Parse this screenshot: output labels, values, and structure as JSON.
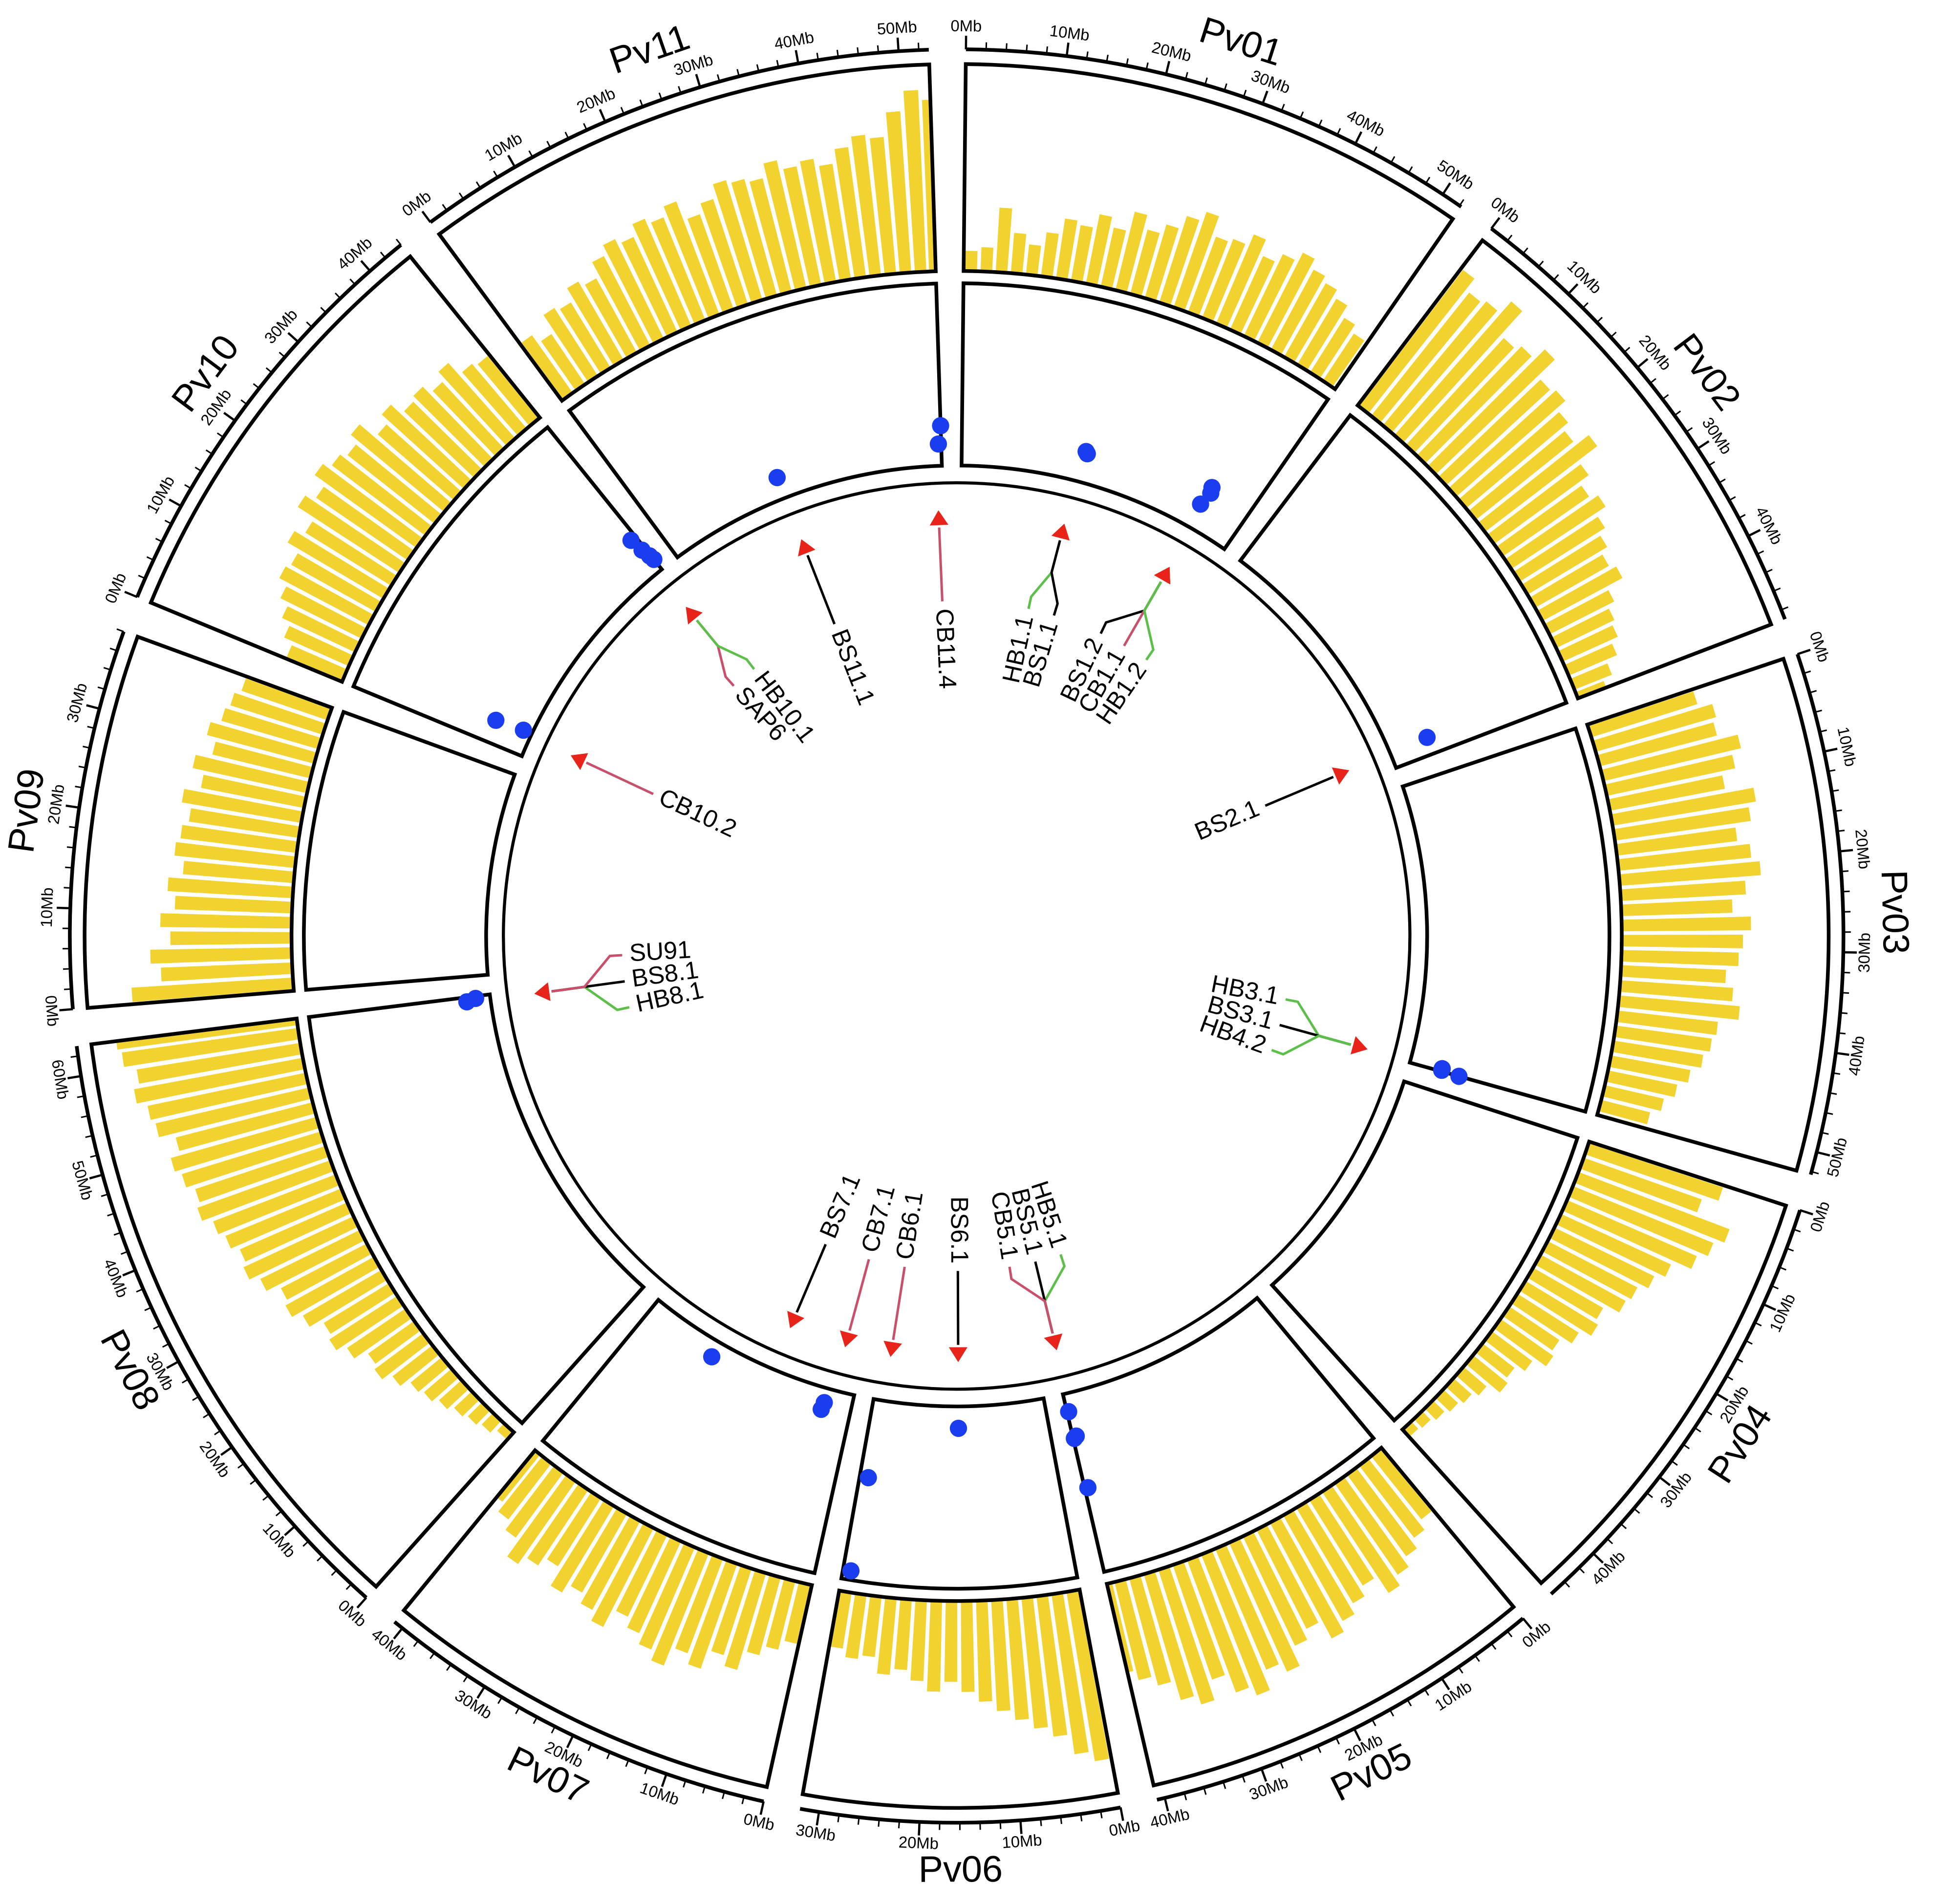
{
  "chart_data": {
    "type": "circos",
    "bin_size": 2,
    "minor_tick_step": 2,
    "density_lim": [
      0,
      1
    ],
    "density_color": "#f2d22e",
    "dot_color": "#1a3df0",
    "dot_lim": [
      0,
      1
    ],
    "triangle_color": "#e8231a",
    "chromosomes": [
      {
        "name": "Pv01",
        "length": 52.2,
        "ticks": [
          {
            "value": 0,
            "label": "0Mb"
          },
          {
            "value": 10,
            "label": "10Mb"
          },
          {
            "value": 20,
            "label": "20Mb"
          },
          {
            "value": 30,
            "label": "30Mb"
          },
          {
            "value": 40,
            "label": "40Mb"
          },
          {
            "value": 50,
            "label": "50Mb"
          }
        ],
        "density": [
          0.1,
          0.12,
          0.32,
          0.2,
          0.15,
          0.22,
          0.3,
          0.28,
          0.35,
          0.3,
          0.4,
          0.33,
          0.38,
          0.45,
          0.5,
          0.4,
          0.42,
          0.48,
          0.4,
          0.45,
          0.5,
          0.45,
          0.42,
          0.38,
          0.32,
          0.28,
          0.2
        ]
      },
      {
        "name": "Pv02",
        "length": 49.0,
        "ticks": [
          {
            "value": 0,
            "label": "0Mb"
          },
          {
            "value": 10,
            "label": "10Mb"
          },
          {
            "value": 20,
            "label": "20Mb"
          },
          {
            "value": 30,
            "label": "30Mb"
          },
          {
            "value": 40,
            "label": "40Mb"
          }
        ],
        "density": [
          0.85,
          0.78,
          0.8,
          0.88,
          0.72,
          0.75,
          0.82,
          0.7,
          0.72,
          0.66,
          0.62,
          0.7,
          0.58,
          0.52,
          0.56,
          0.5,
          0.46,
          0.42,
          0.45,
          0.36,
          0.32,
          0.3,
          0.26,
          0.2,
          0.15
        ]
      },
      {
        "name": "Pv03",
        "length": 52.3,
        "ticks": [
          {
            "value": 0,
            "label": "0Mb"
          },
          {
            "value": 10,
            "label": "10Mb"
          },
          {
            "value": 20,
            "label": "20Mb"
          },
          {
            "value": 30,
            "label": "30Mb"
          },
          {
            "value": 40,
            "label": "40Mb"
          },
          {
            "value": 50,
            "label": "50Mb"
          }
        ],
        "density": [
          0.55,
          0.62,
          0.6,
          0.7,
          0.65,
          0.58,
          0.72,
          0.68,
          0.6,
          0.66,
          0.7,
          0.62,
          0.55,
          0.64,
          0.6,
          0.58,
          0.52,
          0.56,
          0.6,
          0.5,
          0.48,
          0.45,
          0.4,
          0.35,
          0.3,
          0.25,
          0.22
        ]
      },
      {
        "name": "Pv04",
        "length": 45.8,
        "ticks": [
          {
            "value": 0,
            "label": "0Mb"
          },
          {
            "value": 10,
            "label": "10Mb"
          },
          {
            "value": 20,
            "label": "20Mb"
          },
          {
            "value": 30,
            "label": "30Mb"
          },
          {
            "value": 40,
            "label": "40Mb"
          }
        ],
        "density": [
          0.7,
          0.62,
          0.8,
          0.75,
          0.7,
          0.6,
          0.55,
          0.5,
          0.48,
          0.4,
          0.42,
          0.36,
          0.3,
          0.32,
          0.25,
          0.2,
          0.22,
          0.15,
          0.12,
          0.1,
          0.08,
          0.06,
          0.05
        ]
      },
      {
        "name": "Pv05",
        "length": 40.8,
        "ticks": [
          {
            "value": 0,
            "label": "0Mb"
          },
          {
            "value": 10,
            "label": "10Mb"
          },
          {
            "value": 20,
            "label": "20Mb"
          },
          {
            "value": 30,
            "label": "30Mb"
          },
          {
            "value": 40,
            "label": "40Mb"
          }
        ],
        "density": [
          0.4,
          0.45,
          0.5,
          0.55,
          0.6,
          0.5,
          0.55,
          0.6,
          0.65,
          0.55,
          0.6,
          0.7,
          0.65,
          0.75,
          0.7,
          0.6,
          0.7,
          0.65,
          0.55,
          0.5,
          0.45
        ]
      },
      {
        "name": "Pv06",
        "length": 31.9,
        "ticks": [
          {
            "value": 0,
            "label": "0Mb"
          },
          {
            "value": 10,
            "label": "10Mb"
          },
          {
            "value": 20,
            "label": "20Mb"
          },
          {
            "value": 30,
            "label": "30Mb"
          }
        ],
        "density": [
          0.85,
          0.8,
          0.7,
          0.65,
          0.6,
          0.55,
          0.5,
          0.45,
          0.4,
          0.45,
          0.4,
          0.35,
          0.38,
          0.3,
          0.32,
          0.28
        ]
      },
      {
        "name": "Pv07",
        "length": 41.0,
        "ticks": [
          {
            "value": 0,
            "label": "0Mb"
          },
          {
            "value": 10,
            "label": "10Mb"
          },
          {
            "value": 20,
            "label": "20Mb"
          },
          {
            "value": 30,
            "label": "30Mb"
          },
          {
            "value": 40,
            "label": "40Mb"
          }
        ],
        "density": [
          0.3,
          0.35,
          0.4,
          0.5,
          0.45,
          0.55,
          0.5,
          0.6,
          0.55,
          0.5,
          0.45,
          0.55,
          0.5,
          0.45,
          0.5,
          0.4,
          0.45,
          0.5,
          0.4,
          0.35,
          0.3
        ]
      },
      {
        "name": "Pv08",
        "length": 63.0,
        "ticks": [
          {
            "value": 0,
            "label": "0Mb"
          },
          {
            "value": 10,
            "label": "10Mb"
          },
          {
            "value": 20,
            "label": "20Mb"
          },
          {
            "value": 30,
            "label": "30Mb"
          },
          {
            "value": 40,
            "label": "40Mb"
          },
          {
            "value": 50,
            "label": "50Mb"
          },
          {
            "value": 60,
            "label": "60Mb"
          }
        ],
        "density": [
          0.05,
          0.08,
          0.1,
          0.12,
          0.15,
          0.18,
          0.2,
          0.25,
          0.3,
          0.28,
          0.35,
          0.4,
          0.38,
          0.45,
          0.5,
          0.48,
          0.55,
          0.6,
          0.58,
          0.62,
          0.65,
          0.7,
          0.68,
          0.72,
          0.75,
          0.7,
          0.78,
          0.8,
          0.85,
          0.82,
          0.88,
          0.9
        ]
      },
      {
        "name": "Pv09",
        "length": 38.0,
        "ticks": [
          {
            "value": 0,
            "label": "0Mb"
          },
          {
            "value": 10,
            "label": "10Mb"
          },
          {
            "value": 20,
            "label": "20Mb"
          },
          {
            "value": 30,
            "label": "30Mb"
          }
        ],
        "density": [
          0.8,
          0.65,
          0.7,
          0.6,
          0.65,
          0.58,
          0.62,
          0.55,
          0.6,
          0.58,
          0.55,
          0.6,
          0.52,
          0.58,
          0.5,
          0.55,
          0.5,
          0.48,
          0.45
        ]
      },
      {
        "name": "Pv10",
        "length": 44.0,
        "ticks": [
          {
            "value": 0,
            "label": "0Mb"
          },
          {
            "value": 10,
            "label": "10Mb"
          },
          {
            "value": 20,
            "label": "20Mb"
          },
          {
            "value": 30,
            "label": "30Mb"
          },
          {
            "value": 40,
            "label": "40Mb"
          }
        ],
        "density": [
          0.3,
          0.35,
          0.4,
          0.45,
          0.5,
          0.48,
          0.55,
          0.5,
          0.6,
          0.55,
          0.62,
          0.58,
          0.55,
          0.6,
          0.5,
          0.55,
          0.48,
          0.5,
          0.45,
          0.5,
          0.42,
          0.4
        ]
      },
      {
        "name": "Pv11",
        "length": 53.0,
        "ticks": [
          {
            "value": 0,
            "label": "0Mb"
          },
          {
            "value": 10,
            "label": "10Mb"
          },
          {
            "value": 20,
            "label": "20Mb"
          },
          {
            "value": 30,
            "label": "30Mb"
          },
          {
            "value": 40,
            "label": "40Mb"
          },
          {
            "value": 50,
            "label": "50Mb"
          }
        ],
        "density": [
          0.35,
          0.3,
          0.4,
          0.38,
          0.45,
          0.42,
          0.5,
          0.55,
          0.52,
          0.58,
          0.55,
          0.6,
          0.5,
          0.55,
          0.62,
          0.6,
          0.58,
          0.65,
          0.6,
          0.62,
          0.58,
          0.65,
          0.7,
          0.68,
          0.8,
          0.9,
          0.85
        ]
      }
    ],
    "dots": [
      {
        "chrom": 10,
        "pos": 53,
        "value": 0.22
      },
      {
        "chrom": 10,
        "pos": 52.5,
        "value": 0.12
      },
      {
        "chrom": 10,
        "pos": 23,
        "value": 0.12
      },
      {
        "chrom": 9,
        "pos": 43,
        "value": 0.23
      },
      {
        "chrom": 9,
        "pos": 43.4,
        "value": 0.15
      },
      {
        "chrom": 9,
        "pos": 43.8,
        "value": 0.1
      },
      {
        "chrom": 9,
        "pos": 44,
        "value": 0.07
      },
      {
        "chrom": 9,
        "pos": 4,
        "value": 0.21
      },
      {
        "chrom": 9,
        "pos": 4.5,
        "value": 0.05
      },
      {
        "chrom": 7,
        "pos": 62.2,
        "value": 0.13
      },
      {
        "chrom": 7,
        "pos": 62.6,
        "value": 0.08
      },
      {
        "chrom": 0,
        "pos": 22,
        "value": 0.17
      },
      {
        "chrom": 0,
        "pos": 22.3,
        "value": 0.16
      },
      {
        "chrom": 0,
        "pos": 44.5,
        "value": 0.25
      },
      {
        "chrom": 0,
        "pos": 44.8,
        "value": 0.22
      },
      {
        "chrom": 0,
        "pos": 44.2,
        "value": 0.14
      },
      {
        "chrom": 1,
        "pos": 46,
        "value": 0.22
      },
      {
        "chrom": 2,
        "pos": 51.8,
        "value": 0.18
      },
      {
        "chrom": 2,
        "pos": 52.1,
        "value": 0.18
      },
      {
        "chrom": 2,
        "pos": 52.3,
        "value": 0.28
      },
      {
        "chrom": 6,
        "pos": 5,
        "value": 0.08
      },
      {
        "chrom": 6,
        "pos": 5.2,
        "value": 0.12
      },
      {
        "chrom": 6,
        "pos": 27,
        "value": 0.09
      },
      {
        "chrom": 5,
        "pos": 16,
        "value": 0.12
      },
      {
        "chrom": 5,
        "pos": 30.5,
        "value": 0.43
      },
      {
        "chrom": 5,
        "pos": 30.8,
        "value": 0.95
      },
      {
        "chrom": 4,
        "pos": 40.5,
        "value": 0.1
      },
      {
        "chrom": 4,
        "pos": 40.2,
        "value": 0.24
      },
      {
        "chrom": 4,
        "pos": 40.6,
        "value": 0.25
      },
      {
        "chrom": 4,
        "pos": 40.3,
        "value": 0.53
      }
    ],
    "qtls": [
      {
        "name": "CB11.4",
        "chrom": 10,
        "pos": 52,
        "color": "#c8506a"
      },
      {
        "name": "BS11.1",
        "chrom": 10,
        "pos": 23,
        "color": "#000000"
      },
      {
        "name": "HB1.1",
        "chrom": 0,
        "pos": 21.5,
        "color": "#5cbf4a"
      },
      {
        "name": "BS1.1",
        "chrom": 0,
        "pos": 21.5,
        "color": "#000000"
      },
      {
        "name": "BS1.2",
        "chrom": 0,
        "pos": 45,
        "color": "#000000"
      },
      {
        "name": "CB1.1",
        "chrom": 0,
        "pos": 45,
        "color": "#c8506a"
      },
      {
        "name": "HB1.2",
        "chrom": 0,
        "pos": 45,
        "color": "#5cbf4a"
      },
      {
        "name": "BS2.1",
        "chrom": 1,
        "pos": 46,
        "color": "#000000"
      },
      {
        "name": "HB3.1",
        "chrom": 2,
        "pos": 52,
        "color": "#5cbf4a"
      },
      {
        "name": "BS3.1",
        "chrom": 2,
        "pos": 52,
        "color": "#000000"
      },
      {
        "name": "HB4.2",
        "chrom": 2,
        "pos": 52,
        "color": "#5cbf4a"
      },
      {
        "name": "HB5.1",
        "chrom": 4,
        "pos": 40,
        "color": "#5cbf4a"
      },
      {
        "name": "BS5.1",
        "chrom": 4,
        "pos": 40,
        "color": "#000000"
      },
      {
        "name": "CB5.1",
        "chrom": 4,
        "pos": 40,
        "color": "#c8506a"
      },
      {
        "name": "BS6.1",
        "chrom": 5,
        "pos": 16,
        "color": "#000000"
      },
      {
        "name": "CB6.1",
        "chrom": 5,
        "pos": 30,
        "color": "#c8506a"
      },
      {
        "name": "CB7.1",
        "chrom": 6,
        "pos": 4,
        "color": "#c8506a"
      },
      {
        "name": "BS7.1",
        "chrom": 6,
        "pos": 16,
        "color": "#000000"
      },
      {
        "name": "HB8.1",
        "chrom": 7,
        "pos": 62,
        "color": "#5cbf4a"
      },
      {
        "name": "BS8.1",
        "chrom": 7,
        "pos": 62,
        "color": "#000000"
      },
      {
        "name": "SU91",
        "chrom": 7,
        "pos": 62,
        "color": "#c8506a"
      },
      {
        "name": "CB10.2",
        "chrom": 9,
        "pos": 4,
        "color": "#c8506a"
      },
      {
        "name": "SAP6",
        "chrom": 9,
        "pos": 43,
        "color": "#c8506a"
      },
      {
        "name": "HB10.1",
        "chrom": 9,
        "pos": 43,
        "color": "#5cbf4a"
      }
    ]
  }
}
